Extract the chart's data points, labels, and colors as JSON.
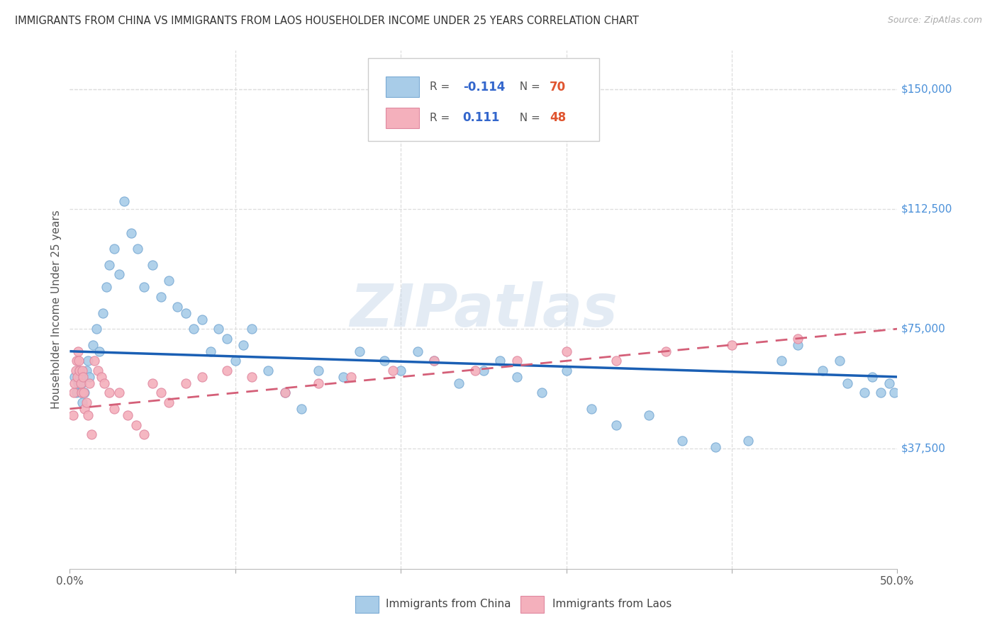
{
  "title": "IMMIGRANTS FROM CHINA VS IMMIGRANTS FROM LAOS HOUSEHOLDER INCOME UNDER 25 YEARS CORRELATION CHART",
  "source": "Source: ZipAtlas.com",
  "ylabel": "Householder Income Under 25 years",
  "yticks": [
    0,
    37500,
    75000,
    112500,
    150000
  ],
  "ytick_labels": [
    "",
    "$37,500",
    "$75,000",
    "$112,500",
    "$150,000"
  ],
  "xlim": [
    0.0,
    50.0
  ],
  "ylim": [
    0,
    162000
  ],
  "china_color": "#a8cce8",
  "laos_color": "#f4b0bc",
  "trend_china_color": "#1a5fb4",
  "trend_laos_color": "#d45f78",
  "watermark": "ZIPatlas",
  "china_x": [
    0.3,
    0.4,
    0.5,
    0.55,
    0.6,
    0.65,
    0.7,
    0.75,
    0.8,
    0.9,
    1.0,
    1.1,
    1.2,
    1.4,
    1.6,
    1.8,
    2.0,
    2.2,
    2.4,
    2.7,
    3.0,
    3.3,
    3.7,
    4.1,
    4.5,
    5.0,
    5.5,
    6.0,
    6.5,
    7.0,
    7.5,
    8.0,
    8.5,
    9.0,
    9.5,
    10.0,
    10.5,
    11.0,
    12.0,
    13.0,
    14.0,
    15.0,
    16.5,
    17.5,
    19.0,
    20.0,
    21.0,
    22.0,
    23.5,
    25.0,
    26.0,
    27.0,
    28.5,
    30.0,
    31.5,
    33.0,
    35.0,
    37.0,
    39.0,
    41.0,
    43.0,
    44.0,
    45.5,
    46.5,
    47.0,
    48.0,
    48.5,
    49.0,
    49.5,
    49.8
  ],
  "china_y": [
    60000,
    55000,
    58000,
    62000,
    60000,
    55000,
    58000,
    52000,
    60000,
    55000,
    62000,
    65000,
    60000,
    70000,
    75000,
    68000,
    80000,
    88000,
    95000,
    100000,
    92000,
    115000,
    105000,
    100000,
    88000,
    95000,
    85000,
    90000,
    82000,
    80000,
    75000,
    78000,
    68000,
    75000,
    72000,
    65000,
    70000,
    75000,
    62000,
    55000,
    50000,
    62000,
    60000,
    68000,
    65000,
    62000,
    68000,
    65000,
    58000,
    62000,
    65000,
    60000,
    55000,
    62000,
    50000,
    45000,
    48000,
    40000,
    38000,
    40000,
    65000,
    70000,
    62000,
    65000,
    58000,
    55000,
    60000,
    55000,
    58000,
    55000
  ],
  "laos_x": [
    0.2,
    0.25,
    0.3,
    0.35,
    0.4,
    0.45,
    0.5,
    0.55,
    0.6,
    0.65,
    0.7,
    0.75,
    0.8,
    0.85,
    0.9,
    1.0,
    1.1,
    1.2,
    1.3,
    1.5,
    1.7,
    1.9,
    2.1,
    2.4,
    2.7,
    3.0,
    3.5,
    4.0,
    4.5,
    5.0,
    5.5,
    6.0,
    7.0,
    8.0,
    9.5,
    11.0,
    13.0,
    15.0,
    17.0,
    19.5,
    22.0,
    24.5,
    27.0,
    30.0,
    33.0,
    36.0,
    40.0,
    44.0
  ],
  "laos_y": [
    48000,
    55000,
    58000,
    62000,
    65000,
    60000,
    68000,
    65000,
    62000,
    58000,
    55000,
    62000,
    60000,
    55000,
    50000,
    52000,
    48000,
    58000,
    42000,
    65000,
    62000,
    60000,
    58000,
    55000,
    50000,
    55000,
    48000,
    45000,
    42000,
    58000,
    55000,
    52000,
    58000,
    60000,
    62000,
    60000,
    55000,
    58000,
    60000,
    62000,
    65000,
    62000,
    65000,
    68000,
    65000,
    68000,
    70000,
    72000
  ],
  "trend_china_x0": 0.0,
  "trend_china_x1": 50.0,
  "trend_china_y0": 68000,
  "trend_china_y1": 60000,
  "trend_laos_x0": 0.0,
  "trend_laos_x1": 50.0,
  "trend_laos_y0": 50000,
  "trend_laos_y1": 75000
}
